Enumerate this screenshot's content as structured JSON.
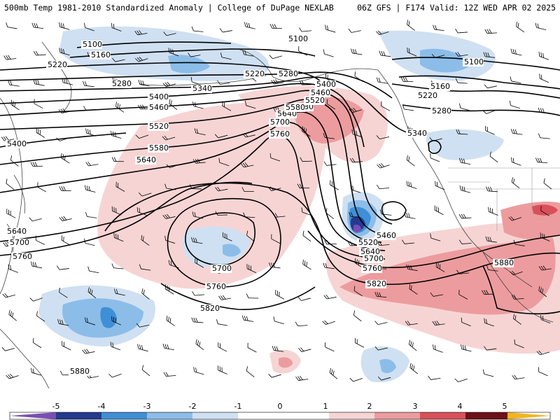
{
  "header": {
    "left": "500mb Temp 1981-2010 Standardized Anomaly | College of DuPage NEXLAB",
    "right": "06Z GFS | F174 Valid: 12Z WED APR 02 2025"
  },
  "colors": {
    "neg5": "#7a4db3",
    "neg4": "#253a8f",
    "neg3": "#3f8fd6",
    "neg2": "#8cbde8",
    "neg1": "#cfe0f2",
    "pos1": "#f7d4d4",
    "pos2": "#ec9c9e",
    "pos3": "#d9505a",
    "pos4": "#a82431",
    "pos5": "#6f1018",
    "max": "#f2b41f"
  },
  "contour_labels": [
    {
      "id": "c5100a",
      "text": "5100"
    },
    {
      "id": "c5160a",
      "text": "5160"
    },
    {
      "id": "c5220a",
      "text": "5220"
    },
    {
      "id": "c5280a",
      "text": "5280"
    },
    {
      "id": "c5340a",
      "text": "5340"
    },
    {
      "id": "c5400a",
      "text": "5400"
    },
    {
      "id": "c5460a",
      "text": "5460"
    },
    {
      "id": "c5520a",
      "text": "5520"
    },
    {
      "id": "c5580a",
      "text": "5580"
    },
    {
      "id": "c5640a",
      "text": "5640"
    },
    {
      "id": "c5400w",
      "text": "5400"
    },
    {
      "id": "c5580b",
      "text": "5580"
    },
    {
      "id": "c5640b",
      "text": "5640"
    },
    {
      "id": "c5760a",
      "text": "5760"
    },
    {
      "id": "c5700a",
      "text": "5700"
    },
    {
      "id": "c5760b",
      "text": "5760"
    },
    {
      "id": "c5820a",
      "text": "5820"
    },
    {
      "id": "c5640w",
      "text": "5640"
    },
    {
      "id": "c5700w",
      "text": "5700"
    },
    {
      "id": "c5760w",
      "text": "5760"
    },
    {
      "id": "c5880w",
      "text": "5880"
    },
    {
      "id": "c5100n",
      "text": "5100"
    },
    {
      "id": "c5220n",
      "text": "5220"
    },
    {
      "id": "c5280n",
      "text": "5280"
    },
    {
      "id": "c5400n",
      "text": "5400"
    },
    {
      "id": "c5460n",
      "text": "5460"
    },
    {
      "id": "c5520n",
      "text": "5520"
    },
    {
      "id": "c5580n",
      "text": "5580"
    },
    {
      "id": "c5700n",
      "text": "5700"
    },
    {
      "id": "c5460l",
      "text": "5460"
    },
    {
      "id": "c5520l",
      "text": "5520"
    },
    {
      "id": "c5640l",
      "text": "5640"
    },
    {
      "id": "c5700l",
      "text": "5700"
    },
    {
      "id": "c5760l",
      "text": "5760"
    },
    {
      "id": "c5820l",
      "text": "5820"
    },
    {
      "id": "c5340e",
      "text": "5340"
    },
    {
      "id": "c5100e",
      "text": "5100"
    },
    {
      "id": "c5160e",
      "text": "5160"
    },
    {
      "id": "c5220e",
      "text": "5220"
    },
    {
      "id": "c5280e",
      "text": "5280"
    },
    {
      "id": "c5880e",
      "text": "5880"
    }
  ],
  "colorbar": {
    "ticks": [
      "-5",
      "-4",
      "-3",
      "-2",
      "-1",
      "0",
      "1",
      "2",
      "3",
      "4",
      "5"
    ]
  }
}
